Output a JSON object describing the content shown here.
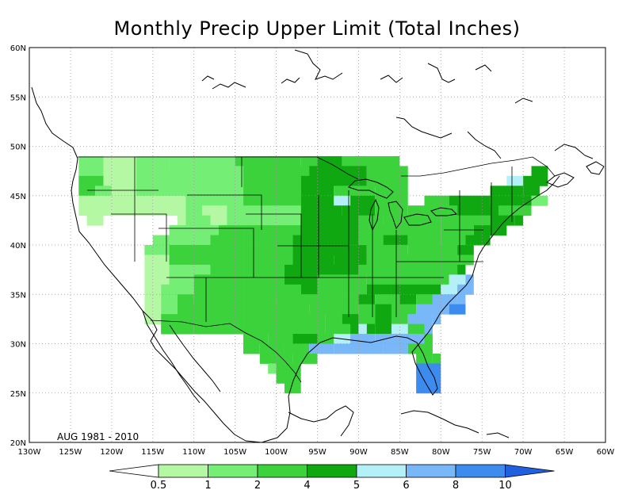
{
  "title": "Monthly Precip Upper Limit (Total Inches)",
  "period": "AUG 1981 - 2010",
  "lat_labels": [
    "60N",
    "55N",
    "50N",
    "45N",
    "40N",
    "35N",
    "30N",
    "25N",
    "20N"
  ],
  "lon_labels": [
    "130W",
    "125W",
    "120W",
    "115W",
    "110W",
    "105W",
    "100W",
    "95W",
    "90W",
    "85W",
    "80W",
    "75W",
    "70W",
    "65W",
    "60W"
  ],
  "colorbar": {
    "labels": [
      "0.5",
      "1",
      "2",
      "4",
      "5",
      "6",
      "8",
      "10"
    ],
    "colors": [
      "#ffffff",
      "#b4f8a4",
      "#74ee74",
      "#3cd23c",
      "#10a810",
      "#b4f0f8",
      "#78b8f8",
      "#3c8cf0",
      "#2060e0"
    ]
  },
  "legend_colors": {
    "lt05": "#ffffff",
    "c05_1": "#b4f8a4",
    "c1_2": "#74ee74",
    "c2_4": "#3cd23c",
    "c4_5": "#10a810",
    "c5_6": "#b4f0f8",
    "c6_8": "#78b8f8",
    "c8_10": "#3c8cf0"
  }
}
